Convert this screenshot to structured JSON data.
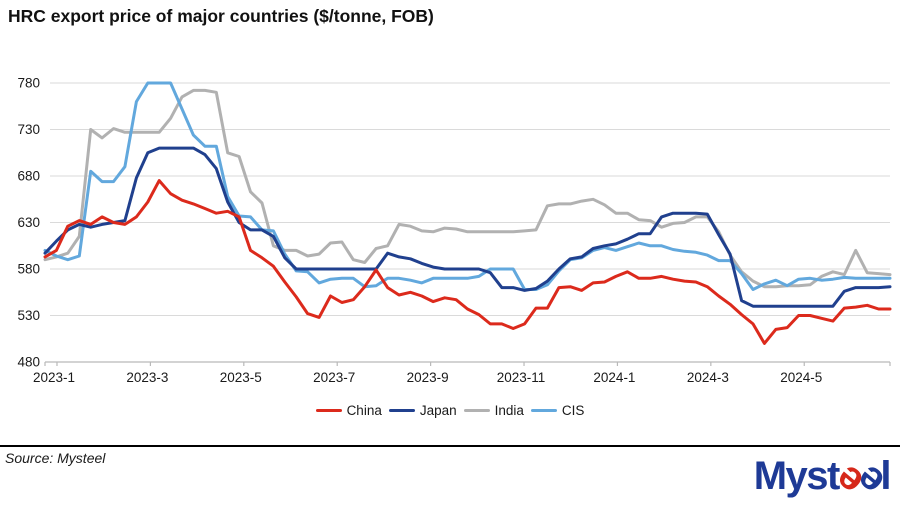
{
  "title": "HRC export price of major countries ($/tonne, FOB)",
  "source_text": "Source: Mysteel",
  "logo": {
    "prefix": "Myst",
    "e1": "e",
    "e2": "e",
    "suffix": "l"
  },
  "colors": {
    "china_red": "#dc2a1c",
    "japan_navy": "#20408e",
    "india_gray": "#b1b1b1",
    "cis_blue": "#62a8dd",
    "gridline": "#dadada",
    "axis_line": "#b9b9b9",
    "label_text": "#1a1a1a",
    "logo_blue": "#1e3a96",
    "logo_red": "#d6281a"
  },
  "chart_data": {
    "type": "line",
    "title": "HRC export price of major countries ($/tonne, FOB)",
    "xlabel": "",
    "ylabel": "",
    "grid": "horizontal",
    "legend_position": "bottom-center",
    "y_ticks": [
      480,
      530,
      580,
      630,
      680,
      730,
      780
    ],
    "ylim": [
      480,
      795
    ],
    "x_unit": "week-index (Jan 2023 to Jun 2024, weekly)",
    "x_tick_labels": [
      "2023-1",
      "2023-3",
      "2023-5",
      "2023-7",
      "2023-9",
      "2023-11",
      "2024-1",
      "2024-3",
      "2024-5"
    ],
    "x_tick_weeks": [
      1.05,
      9.23,
      17.41,
      25.59,
      33.77,
      41.95,
      50.13,
      58.31,
      66.49
    ],
    "weeks_total": 74,
    "series": [
      {
        "name": "China",
        "color": "#dc2a1c",
        "values": [
          593,
          600,
          626,
          632,
          628,
          636,
          630,
          628,
          636,
          652,
          675,
          661,
          654,
          650,
          645,
          640,
          642,
          636,
          600,
          592,
          583,
          566,
          550,
          532,
          528,
          551,
          544,
          547,
          561,
          579,
          560,
          552,
          555,
          551,
          545,
          549,
          547,
          537,
          531,
          521,
          521,
          516,
          521,
          538,
          538,
          560,
          561,
          557,
          565,
          566,
          572,
          577,
          570,
          570,
          572,
          569,
          567,
          566,
          561,
          551,
          542,
          531,
          521,
          500,
          515,
          517,
          530,
          530,
          527,
          524,
          538,
          539,
          541,
          537,
          537
        ]
      },
      {
        "name": "Japan",
        "color": "#20408e",
        "values": [
          597,
          610,
          622,
          628,
          625,
          628,
          630,
          632,
          678,
          705,
          710,
          710,
          710,
          710,
          703,
          688,
          652,
          630,
          622,
          622,
          615,
          592,
          580,
          580,
          580,
          580,
          580,
          580,
          580,
          580,
          597,
          593,
          591,
          586,
          582,
          580,
          580,
          580,
          580,
          576,
          560,
          560,
          557,
          559,
          567,
          580,
          591,
          593,
          602,
          605,
          607,
          612,
          618,
          618,
          636,
          640,
          640,
          640,
          639,
          617,
          596,
          546,
          540,
          540,
          540,
          540,
          540,
          540,
          540,
          540,
          556,
          560,
          560,
          560,
          561
        ]
      },
      {
        "name": "India",
        "color": "#b1b1b1",
        "values": [
          590,
          593,
          597,
          615,
          730,
          721,
          731,
          727,
          727,
          727,
          727,
          742,
          765,
          772,
          772,
          770,
          705,
          701,
          663,
          651,
          605,
          600,
          600,
          594,
          596,
          608,
          609,
          590,
          587,
          602,
          605,
          628,
          626,
          621,
          620,
          624,
          623,
          620,
          620,
          620,
          620,
          620,
          621,
          622,
          648,
          650,
          650,
          653,
          655,
          649,
          640,
          640,
          633,
          632,
          625,
          629,
          630,
          636,
          636,
          620,
          595,
          577,
          567,
          561,
          561,
          562,
          562,
          563,
          572,
          577,
          574,
          600,
          576,
          575,
          574
        ]
      },
      {
        "name": "CIS",
        "color": "#62a8dd",
        "values": [
          600,
          594,
          590,
          594,
          685,
          674,
          674,
          690,
          760,
          780,
          780,
          780,
          752,
          724,
          712,
          712,
          658,
          637,
          636,
          622,
          621,
          596,
          578,
          577,
          565,
          569,
          570,
          570,
          561,
          562,
          570,
          570,
          568,
          565,
          570,
          570,
          570,
          570,
          572,
          580,
          580,
          580,
          558,
          558,
          563,
          578,
          590,
          592,
          600,
          603,
          600,
          604,
          608,
          605,
          605,
          601,
          599,
          598,
          595,
          589,
          589,
          575,
          558,
          564,
          568,
          562,
          569,
          570,
          568,
          569,
          571,
          570,
          570,
          570,
          570
        ]
      }
    ]
  }
}
